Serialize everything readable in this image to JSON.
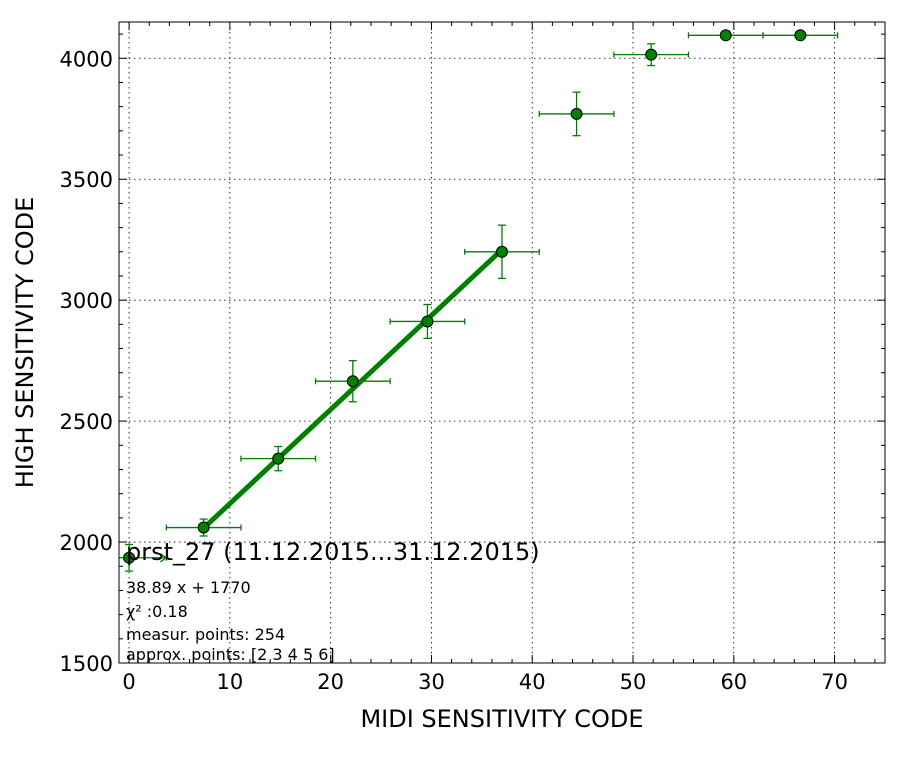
{
  "chart_data": {
    "type": "scatter",
    "title": "prst_27 (11.12.2015...31.12.2015)",
    "xlabel": "MIDI SENSITIVITY CODE",
    "ylabel": "HIGH SENSITIVITY CODE",
    "xlim": [
      -1,
      75
    ],
    "ylim": [
      1500,
      4150
    ],
    "x_ticks": [
      0,
      10,
      20,
      30,
      40,
      50,
      60,
      70
    ],
    "y_ticks": [
      1500,
      2000,
      2500,
      3000,
      3500,
      4000
    ],
    "grid": true,
    "colors": {
      "points": "#008000",
      "fit_line": "#008000",
      "marker_edge": "#000000"
    },
    "series": [
      {
        "kind": "points_with_error_bars",
        "x": [
          0.0,
          7.4,
          14.8,
          22.2,
          29.6,
          37.0,
          44.4,
          51.8,
          59.2,
          66.6
        ],
        "y": [
          1935,
          2060,
          2345,
          2665,
          2912,
          3200,
          3770,
          4015,
          4095,
          4095
        ],
        "x_err": [
          3.7,
          3.7,
          3.7,
          3.7,
          3.7,
          3.7,
          3.7,
          3.7,
          3.7,
          3.7
        ],
        "y_err": [
          55,
          35,
          50,
          85,
          70,
          110,
          90,
          45,
          0,
          0
        ]
      },
      {
        "kind": "fit_line",
        "slope": 38.89,
        "intercept": 1770,
        "x_range": [
          7.4,
          37.0
        ]
      }
    ],
    "annotations": [
      "38.89 x + 1770",
      "χ² :0.18",
      "measur. points: 254",
      "approx. points: [2 3 4 5 6]"
    ]
  }
}
